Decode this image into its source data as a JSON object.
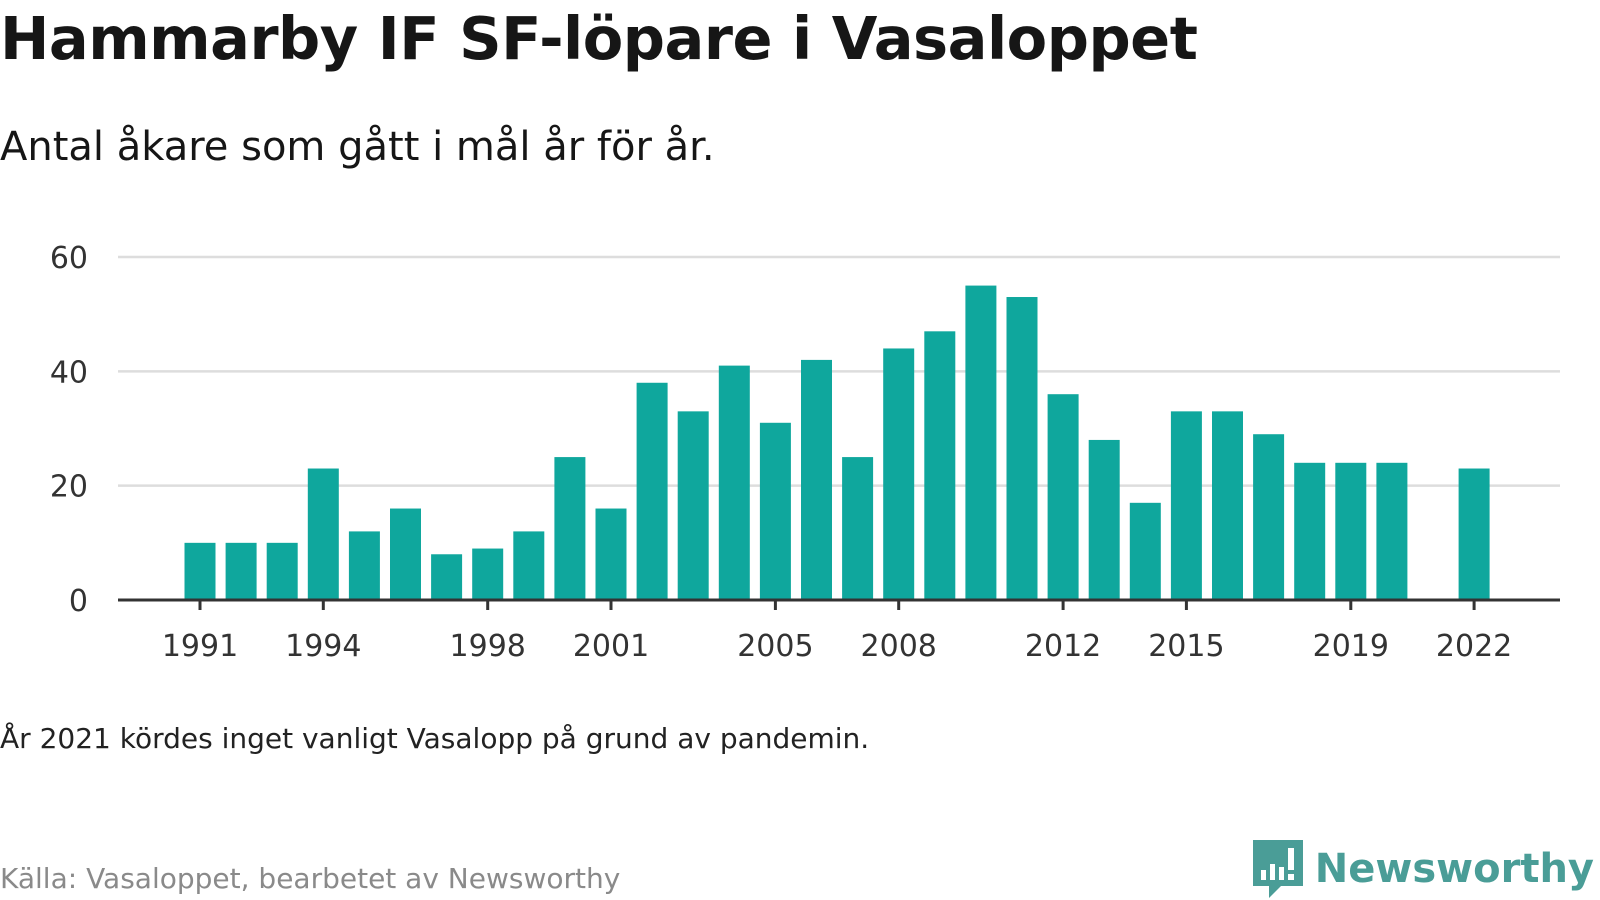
{
  "title": "Hammarby IF SF-löpare i Vasaloppet",
  "subtitle": "Antal åkare som gått i mål år för år.",
  "note": "År 2021 kördes inget vanligt Vasalopp på grund av pandemin.",
  "source": "Källa: Vasaloppet, bearbetet av Newsworthy",
  "brand": {
    "name": "Newsworthy",
    "logo_icon": "newsworthy-logo-icon"
  },
  "colors": {
    "bar": "#0fa79d",
    "grid": "#dddddd",
    "axis": "#333333",
    "brand": "#4a9d97"
  },
  "chart_data": {
    "type": "bar",
    "x": [
      1991,
      1992,
      1993,
      1994,
      1995,
      1996,
      1997,
      1998,
      1999,
      2000,
      2001,
      2002,
      2003,
      2004,
      2005,
      2006,
      2007,
      2008,
      2009,
      2010,
      2011,
      2012,
      2013,
      2014,
      2015,
      2016,
      2017,
      2018,
      2019,
      2020,
      2021,
      2022
    ],
    "values": [
      10,
      10,
      10,
      23,
      12,
      16,
      8,
      9,
      12,
      25,
      16,
      38,
      33,
      41,
      31,
      42,
      25,
      44,
      47,
      55,
      53,
      36,
      28,
      17,
      33,
      33,
      29,
      24,
      24,
      24,
      null,
      23
    ],
    "xticks": [
      "1991",
      "1994",
      "1998",
      "2001",
      "2005",
      "2008",
      "2012",
      "2015",
      "2019",
      "2022"
    ],
    "yticks": [
      "0",
      "20",
      "40",
      "60"
    ],
    "ylim": [
      0,
      60
    ],
    "grid": true,
    "legend": false,
    "title": "Hammarby IF SF-löpare i Vasaloppet",
    "xlabel": "",
    "ylabel": ""
  }
}
